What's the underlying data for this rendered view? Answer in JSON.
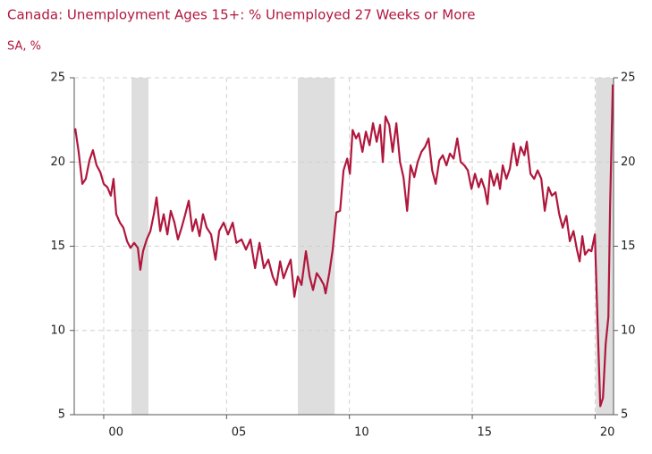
{
  "chart_data": {
    "type": "line",
    "title": "Canada: Unemployment Ages 15+: % Unemployed 27 Weeks or More",
    "subtitle": "SA, %",
    "x": [
      1998.84,
      1998.98,
      1999.13,
      1999.27,
      1999.42,
      1999.56,
      1999.71,
      1999.86,
      2000.0,
      2000.15,
      2000.29,
      2000.4,
      2000.51,
      2000.66,
      2000.8,
      2000.95,
      2001.09,
      2001.24,
      2001.39,
      2001.49,
      2001.6,
      2001.75,
      2001.9,
      2002.04,
      2002.15,
      2002.3,
      2002.44,
      2002.59,
      2002.73,
      2002.88,
      2003.02,
      2003.17,
      2003.32,
      2003.46,
      2003.61,
      2003.75,
      2003.9,
      2004.04,
      2004.19,
      2004.37,
      2004.55,
      2004.7,
      2004.88,
      2005.06,
      2005.25,
      2005.4,
      2005.61,
      2005.79,
      2005.97,
      2006.16,
      2006.34,
      2006.52,
      2006.7,
      2006.88,
      2007.03,
      2007.18,
      2007.32,
      2007.47,
      2007.61,
      2007.76,
      2007.9,
      2008.05,
      2008.23,
      2008.38,
      2008.52,
      2008.67,
      2008.81,
      2008.96,
      2009.03,
      2009.18,
      2009.32,
      2009.47,
      2009.62,
      2009.76,
      2009.91,
      2010.02,
      2010.13,
      2010.27,
      2010.38,
      2010.53,
      2010.67,
      2010.82,
      2010.96,
      2011.11,
      2011.25,
      2011.36,
      2011.47,
      2011.62,
      2011.76,
      2011.91,
      2012.06,
      2012.2,
      2012.35,
      2012.49,
      2012.64,
      2012.78,
      2012.93,
      2013.08,
      2013.22,
      2013.37,
      2013.51,
      2013.66,
      2013.8,
      2013.95,
      2014.09,
      2014.24,
      2014.39,
      2014.53,
      2014.68,
      2014.82,
      2014.97,
      2015.11,
      2015.26,
      2015.37,
      2015.51,
      2015.62,
      2015.73,
      2015.88,
      2016.02,
      2016.13,
      2016.24,
      2016.39,
      2016.53,
      2016.68,
      2016.82,
      2016.97,
      2017.12,
      2017.22,
      2017.37,
      2017.52,
      2017.66,
      2017.81,
      2017.95,
      2018.1,
      2018.24,
      2018.39,
      2018.54,
      2018.68,
      2018.83,
      2018.97,
      2019.12,
      2019.26,
      2019.37,
      2019.48,
      2019.59,
      2019.74,
      2019.85,
      2019.99,
      2020.1,
      2020.21,
      2020.32,
      2020.43,
      2020.54,
      2020.61,
      2020.72
    ],
    "series": [
      {
        "color": "#b0173d",
        "values": [
          22.0,
          20.6,
          18.7,
          19.0,
          20.1,
          20.7,
          19.8,
          19.4,
          18.7,
          18.5,
          18.0,
          19.0,
          16.9,
          16.4,
          16.1,
          15.3,
          14.9,
          15.2,
          14.9,
          13.6,
          14.7,
          15.4,
          15.9,
          16.9,
          17.9,
          15.9,
          16.9,
          15.7,
          17.1,
          16.4,
          15.4,
          16.1,
          16.9,
          17.7,
          15.9,
          16.6,
          15.6,
          16.9,
          16.1,
          15.7,
          14.2,
          15.9,
          16.4,
          15.7,
          16.4,
          15.2,
          15.4,
          14.8,
          15.4,
          13.7,
          15.2,
          13.7,
          14.2,
          13.2,
          12.7,
          14.1,
          13.1,
          13.7,
          14.2,
          12.0,
          13.2,
          12.7,
          14.7,
          13.2,
          12.4,
          13.4,
          13.1,
          12.7,
          12.2,
          13.4,
          14.8,
          17.0,
          17.1,
          19.5,
          20.2,
          19.3,
          21.9,
          21.4,
          21.7,
          20.6,
          21.8,
          21.0,
          22.3,
          21.2,
          22.2,
          20.0,
          22.7,
          22.2,
          20.6,
          22.3,
          20.0,
          19.1,
          17.1,
          19.8,
          19.1,
          20.0,
          20.6,
          20.9,
          21.4,
          19.5,
          18.7,
          20.1,
          20.4,
          19.8,
          20.5,
          20.2,
          21.4,
          20.0,
          19.8,
          19.5,
          18.4,
          19.3,
          18.5,
          19.0,
          18.4,
          17.5,
          19.5,
          18.6,
          19.3,
          18.4,
          19.8,
          19.0,
          19.6,
          21.1,
          19.8,
          20.9,
          20.4,
          21.2,
          19.3,
          19.0,
          19.5,
          19.0,
          17.1,
          18.5,
          18.0,
          18.2,
          16.9,
          16.1,
          16.8,
          15.3,
          15.9,
          14.8,
          14.1,
          15.6,
          14.5,
          14.8,
          14.7,
          15.7,
          10.5,
          5.5,
          6.0,
          9.2,
          10.8,
          17.4,
          24.6
        ]
      }
    ],
    "shaded_periods": [
      [
        2001.13,
        2001.82
      ],
      [
        2007.9,
        2009.4
      ],
      [
        2020.03,
        2020.75
      ]
    ],
    "xlim": [
      1998.8,
      2020.75
    ],
    "xticks": [
      {
        "value": 2000,
        "label": "00"
      },
      {
        "value": 2005,
        "label": "05"
      },
      {
        "value": 2010,
        "label": "10"
      },
      {
        "value": 2015,
        "label": "15"
      },
      {
        "value": 2020,
        "label": "20"
      }
    ],
    "ylim": [
      5,
      25
    ],
    "yticks": [
      5,
      10,
      15,
      20,
      25
    ],
    "y2lim": [
      5,
      25
    ],
    "y2ticks": [
      5,
      10,
      15,
      20,
      25
    ],
    "grid": true
  }
}
